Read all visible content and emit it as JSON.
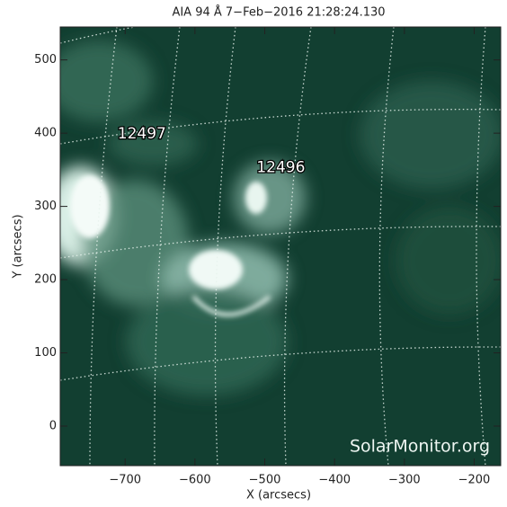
{
  "chart_data": {
    "type": "image",
    "title": "AIA 94 Å  7−Feb−2016 21:28:24.130",
    "x_label": "X (arcsecs)",
    "y_label": "Y (arcsecs)",
    "xlim": [
      -793,
      -162
    ],
    "ylim": [
      -54,
      545
    ],
    "xticks": [
      {
        "value": -700,
        "label": "−700"
      },
      {
        "value": -600,
        "label": "−600"
      },
      {
        "value": -500,
        "label": "−500"
      },
      {
        "value": -400,
        "label": "−400"
      },
      {
        "value": -300,
        "label": "−300"
      },
      {
        "value": -200,
        "label": "−200"
      }
    ],
    "yticks": [
      0,
      100,
      200,
      300,
      400,
      500
    ],
    "annotations": [
      {
        "text": "12497",
        "x": -676,
        "y": 399
      },
      {
        "text": "12496",
        "x": -477,
        "y": 353
      }
    ],
    "watermark": "SolarMonitor.org"
  }
}
